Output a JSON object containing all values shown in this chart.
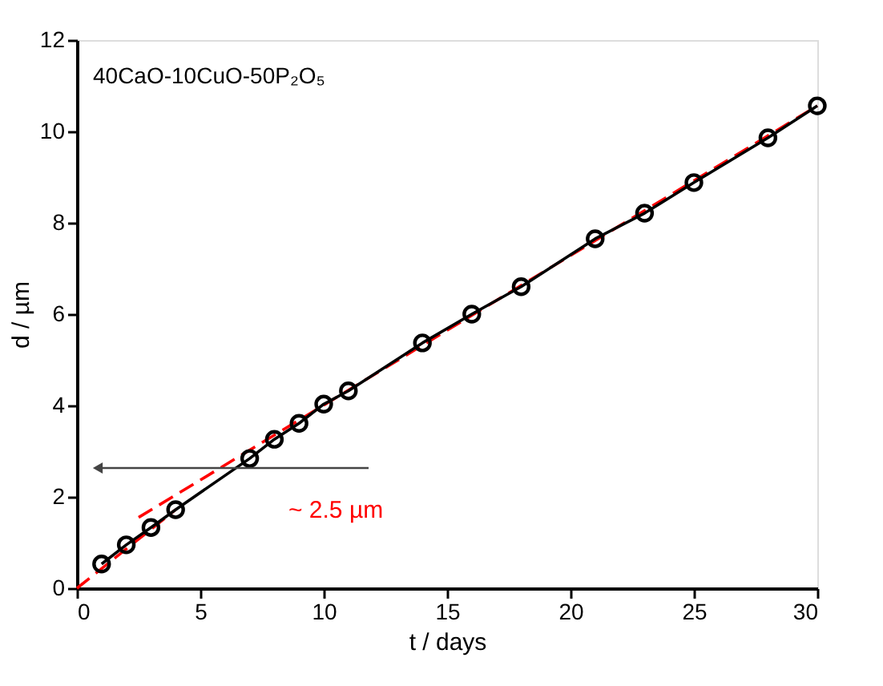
{
  "chart_data": {
    "type": "line",
    "xlabel": "t / days",
    "ylabel": "d / µm",
    "xlim": [
      0,
      30
    ],
    "xticks": [
      0,
      5,
      10,
      15,
      20,
      25,
      30
    ],
    "ylim": [
      0,
      12
    ],
    "yticks": [
      0,
      2,
      4,
      6,
      8,
      10,
      12
    ],
    "series": [
      {
        "color": "#ff0000",
        "line_style": "dashed",
        "marker": "none",
        "x": [
          0,
          4
        ],
        "values": [
          0,
          1.72
        ]
      },
      {
        "color": "#ff0000",
        "line_style": "dashed",
        "marker": "none",
        "x": [
          2.5,
          30
        ],
        "values": [
          1.55,
          10.56
        ]
      },
      {
        "color": "#000000",
        "line_style": "solid",
        "marker": "circle",
        "x": [
          1,
          2,
          3,
          4,
          7,
          8,
          9,
          10,
          11,
          14,
          16,
          18,
          21,
          23,
          25,
          28,
          30
        ],
        "values": [
          0.53,
          0.95,
          1.33,
          1.72,
          2.84,
          3.26,
          3.61,
          4.03,
          4.32,
          5.37,
          6.0,
          6.6,
          7.65,
          8.21,
          8.88,
          9.86,
          10.56
        ]
      }
    ],
    "annotations": [
      "40CaO-10CuO-50P₂O₅",
      "~ 2.5 µm"
    ],
    "grid": false
  }
}
